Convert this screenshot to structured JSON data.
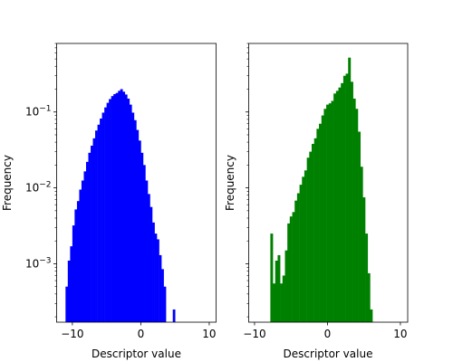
{
  "chart_data": [
    {
      "type": "bar",
      "histogram": true,
      "color": "#0000ff",
      "xlabel": "Descriptor value",
      "ylabel": "Frequency",
      "yscale": "log",
      "xlim": [
        -12.3,
        11.0
      ],
      "ylim": [
        0.00017,
        0.8
      ],
      "xticks": [
        -10,
        0,
        10
      ],
      "yticks": [
        {
          "value": 0.1,
          "label": "10",
          "exp": "−1"
        },
        {
          "value": 0.01,
          "label": "10",
          "exp": "−2"
        },
        {
          "value": 0.001,
          "label": "10",
          "exp": "−3"
        }
      ],
      "yticklabels_visible": true,
      "bin_width": 0.333,
      "bins": [
        [
          -11.0,
          0.0005
        ],
        [
          -10.67,
          0.0011
        ],
        [
          -10.33,
          0.0017
        ],
        [
          -10.0,
          0.0032
        ],
        [
          -9.67,
          0.0052
        ],
        [
          -9.33,
          0.0067
        ],
        [
          -9.0,
          0.0095
        ],
        [
          -8.67,
          0.0125
        ],
        [
          -8.33,
          0.0165
        ],
        [
          -8.0,
          0.022
        ],
        [
          -7.67,
          0.029
        ],
        [
          -7.33,
          0.036
        ],
        [
          -7.0,
          0.045
        ],
        [
          -6.67,
          0.057
        ],
        [
          -6.33,
          0.068
        ],
        [
          -6.0,
          0.082
        ],
        [
          -5.67,
          0.098
        ],
        [
          -5.33,
          0.115
        ],
        [
          -5.0,
          0.132
        ],
        [
          -4.67,
          0.148
        ],
        [
          -4.33,
          0.162
        ],
        [
          -4.0,
          0.172
        ],
        [
          -3.67,
          0.178
        ],
        [
          -3.33,
          0.19
        ],
        [
          -3.0,
          0.2
        ],
        [
          -2.67,
          0.185
        ],
        [
          -2.33,
          0.17
        ],
        [
          -2.0,
          0.15
        ],
        [
          -1.67,
          0.125
        ],
        [
          -1.33,
          0.098
        ],
        [
          -1.0,
          0.078
        ],
        [
          -0.67,
          0.058
        ],
        [
          -0.33,
          0.042
        ],
        [
          0.0,
          0.029
        ],
        [
          0.33,
          0.02
        ],
        [
          0.67,
          0.0125
        ],
        [
          1.0,
          0.0083
        ],
        [
          1.33,
          0.0056
        ],
        [
          1.67,
          0.0035
        ],
        [
          2.0,
          0.0025
        ],
        [
          2.33,
          0.0021
        ],
        [
          2.67,
          0.0013
        ],
        [
          3.0,
          0.00085
        ],
        [
          3.33,
          0.0005
        ],
        [
          4.67,
          0.00025
        ]
      ]
    },
    {
      "type": "bar",
      "histogram": true,
      "color": "#008000",
      "xlabel": "Descriptor value",
      "ylabel": "Frequency",
      "yscale": "log",
      "xlim": [
        -10.8,
        11.0
      ],
      "ylim": [
        0.00017,
        0.8
      ],
      "xticks": [
        -10,
        0,
        10
      ],
      "yticks": [
        {
          "value": 0.1,
          "label": "10",
          "exp": "−1"
        },
        {
          "value": 0.01,
          "label": "10",
          "exp": "−2"
        },
        {
          "value": 0.001,
          "label": "10",
          "exp": "−3"
        }
      ],
      "yticklabels_visible": false,
      "bin_width": 0.333,
      "bins": [
        [
          -7.83,
          0.0025
        ],
        [
          -7.5,
          0.00055
        ],
        [
          -7.17,
          0.0011
        ],
        [
          -6.83,
          0.0013
        ],
        [
          -6.5,
          0.00055
        ],
        [
          -6.17,
          0.0007
        ],
        [
          -5.83,
          0.0015
        ],
        [
          -5.5,
          0.0034
        ],
        [
          -5.17,
          0.0042
        ],
        [
          -4.83,
          0.0048
        ],
        [
          -4.5,
          0.0068
        ],
        [
          -4.17,
          0.0085
        ],
        [
          -3.83,
          0.011
        ],
        [
          -3.5,
          0.014
        ],
        [
          -3.17,
          0.017
        ],
        [
          -2.83,
          0.025
        ],
        [
          -2.5,
          0.03
        ],
        [
          -2.17,
          0.038
        ],
        [
          -1.83,
          0.045
        ],
        [
          -1.5,
          0.06
        ],
        [
          -1.17,
          0.07
        ],
        [
          -0.83,
          0.09
        ],
        [
          -0.5,
          0.11
        ],
        [
          -0.17,
          0.125
        ],
        [
          0.17,
          0.13
        ],
        [
          0.5,
          0.14
        ],
        [
          0.83,
          0.175
        ],
        [
          1.17,
          0.19
        ],
        [
          1.5,
          0.21
        ],
        [
          1.83,
          0.24
        ],
        [
          2.17,
          0.3
        ],
        [
          2.5,
          0.32
        ],
        [
          2.83,
          0.52
        ],
        [
          3.17,
          0.25
        ],
        [
          3.5,
          0.15
        ],
        [
          3.83,
          0.11
        ],
        [
          4.17,
          0.055
        ],
        [
          4.5,
          0.019
        ],
        [
          4.83,
          0.0075
        ],
        [
          5.17,
          0.0025
        ],
        [
          5.5,
          0.00075
        ],
        [
          5.83,
          0.00025
        ]
      ]
    }
  ]
}
